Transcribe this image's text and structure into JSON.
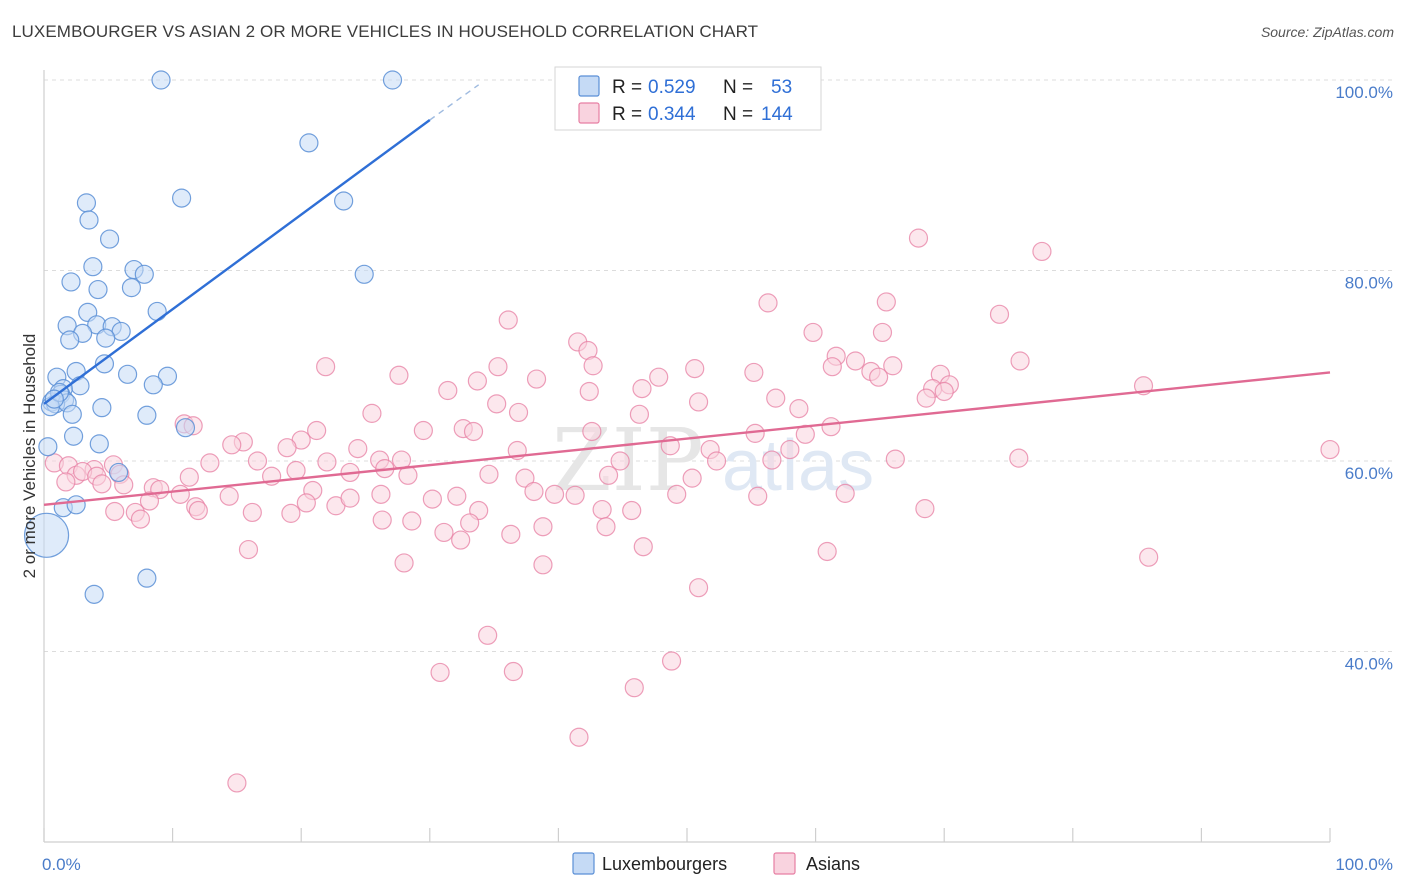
{
  "header": {
    "title": "LUXEMBOURGER VS ASIAN 2 OR MORE VEHICLES IN HOUSEHOLD CORRELATION CHART",
    "source": "Source: ZipAtlas.com"
  },
  "watermark": {
    "zip": "ZIP",
    "atlas": "atlas"
  },
  "legend": {
    "rows": [
      {
        "r_label": "R = ",
        "r_value": "0.529",
        "n_label": "N = ",
        "n_value": "53",
        "color": "#9fc2ee"
      },
      {
        "r_label": "R = ",
        "r_value": "0.344",
        "n_label": "N = ",
        "n_value": "144",
        "color": "#f5b3c8"
      }
    ]
  },
  "bottom_legend": [
    {
      "label": "Luxembourgers",
      "color": "#9fc2ee"
    },
    {
      "label": "Asians",
      "color": "#f5b3c8"
    }
  ],
  "chart_data": {
    "type": "scatter",
    "ylabel": "2 or more Vehicles in Household",
    "xlim": [
      0,
      100
    ],
    "ylim": [
      20,
      100
    ],
    "x_tick_labels": [
      "0.0%",
      "100.0%"
    ],
    "y_ticks": [
      40,
      60,
      80,
      100
    ],
    "y_tick_labels": [
      "40.0%",
      "60.0%",
      "80.0%",
      "100.0%"
    ],
    "grid": true,
    "legend_position": "top-center",
    "colors": {
      "luxembourgers": "#5b8fd6",
      "luxembourgers_fill": "#c5daf5",
      "luxembourgers_line": "#2f6fd6",
      "asians": "#e77fa3",
      "asians_fill": "#f9d3df",
      "asians_line": "#e06a93"
    },
    "series": [
      {
        "name": "Luxembourgers",
        "r": 0.529,
        "n": 53,
        "trend": {
          "x": [
            0,
            30
          ],
          "y": [
            66.0,
            95.8
          ],
          "dashed_to": [
            33.8,
            99.5
          ]
        },
        "points": [
          [
            9.1,
            100
          ],
          [
            27.1,
            100
          ],
          [
            20.6,
            93.4
          ],
          [
            10.7,
            87.6
          ],
          [
            23.3,
            87.3
          ],
          [
            3.3,
            87.1
          ],
          [
            3.5,
            85.3
          ],
          [
            5.1,
            83.3
          ],
          [
            3.8,
            80.4
          ],
          [
            7.0,
            80.1
          ],
          [
            7.8,
            79.6
          ],
          [
            24.9,
            79.6
          ],
          [
            2.1,
            78.8
          ],
          [
            4.2,
            78.0
          ],
          [
            6.8,
            78.2
          ],
          [
            3.4,
            75.6
          ],
          [
            8.8,
            75.7
          ],
          [
            1.8,
            74.2
          ],
          [
            4.1,
            74.3
          ],
          [
            5.3,
            74.1
          ],
          [
            6.0,
            73.6
          ],
          [
            3.0,
            73.4
          ],
          [
            2.0,
            72.7
          ],
          [
            4.8,
            72.9
          ],
          [
            4.7,
            70.2
          ],
          [
            1.0,
            68.8
          ],
          [
            2.5,
            69.4
          ],
          [
            6.5,
            69.1
          ],
          [
            9.6,
            68.9
          ],
          [
            2.8,
            67.9
          ],
          [
            8.5,
            68.0
          ],
          [
            1.5,
            67.6
          ],
          [
            1.3,
            67.0
          ],
          [
            1.6,
            66.4
          ],
          [
            0.6,
            66.2
          ],
          [
            0.9,
            66.0
          ],
          [
            1.8,
            66.1
          ],
          [
            0.5,
            65.7
          ],
          [
            4.5,
            65.6
          ],
          [
            2.2,
            64.9
          ],
          [
            8.0,
            64.8
          ],
          [
            11.0,
            63.5
          ],
          [
            2.3,
            62.6
          ],
          [
            4.3,
            61.8
          ],
          [
            0.3,
            61.5
          ],
          [
            5.8,
            58.8
          ],
          [
            1.5,
            55.1
          ],
          [
            2.5,
            55.4
          ],
          [
            0.2,
            52.2
          ],
          [
            8.0,
            47.7
          ],
          [
            3.9,
            46.0
          ],
          [
            1.2,
            67.2
          ],
          [
            0.8,
            66.5
          ]
        ],
        "large_point": [
          0.2,
          52.2
        ]
      },
      {
        "name": "Asians",
        "r": 0.344,
        "n": 144,
        "trend": {
          "x": [
            0,
            100
          ],
          "y": [
            55.4,
            69.3
          ]
        },
        "points": [
          [
            68.0,
            83.4
          ],
          [
            77.6,
            82.0
          ],
          [
            56.3,
            76.6
          ],
          [
            65.5,
            76.7
          ],
          [
            74.3,
            75.4
          ],
          [
            36.1,
            74.8
          ],
          [
            59.8,
            73.5
          ],
          [
            65.2,
            73.5
          ],
          [
            41.5,
            72.5
          ],
          [
            42.3,
            71.6
          ],
          [
            61.6,
            71.0
          ],
          [
            63.1,
            70.5
          ],
          [
            75.9,
            70.5
          ],
          [
            21.9,
            69.9
          ],
          [
            35.3,
            69.9
          ],
          [
            42.7,
            70.0
          ],
          [
            50.6,
            69.7
          ],
          [
            55.2,
            69.3
          ],
          [
            61.3,
            69.9
          ],
          [
            64.3,
            69.4
          ],
          [
            64.9,
            68.8
          ],
          [
            66.0,
            70.0
          ],
          [
            69.7,
            69.1
          ],
          [
            27.6,
            69.0
          ],
          [
            33.7,
            68.4
          ],
          [
            38.3,
            68.6
          ],
          [
            47.8,
            68.8
          ],
          [
            46.5,
            67.6
          ],
          [
            70.4,
            68.0
          ],
          [
            69.1,
            67.6
          ],
          [
            85.5,
            67.9
          ],
          [
            31.4,
            67.4
          ],
          [
            42.4,
            67.3
          ],
          [
            56.9,
            66.6
          ],
          [
            70.0,
            67.3
          ],
          [
            68.6,
            66.6
          ],
          [
            35.2,
            66.0
          ],
          [
            50.9,
            66.2
          ],
          [
            58.7,
            65.5
          ],
          [
            25.5,
            65.0
          ],
          [
            36.9,
            65.1
          ],
          [
            46.3,
            64.9
          ],
          [
            10.9,
            63.9
          ],
          [
            11.6,
            63.7
          ],
          [
            61.2,
            63.6
          ],
          [
            21.2,
            63.2
          ],
          [
            29.5,
            63.2
          ],
          [
            32.6,
            63.4
          ],
          [
            33.4,
            63.1
          ],
          [
            42.6,
            63.1
          ],
          [
            55.3,
            62.9
          ],
          [
            59.2,
            62.8
          ],
          [
            15.5,
            62.0
          ],
          [
            20.0,
            62.2
          ],
          [
            14.6,
            61.7
          ],
          [
            18.9,
            61.4
          ],
          [
            24.4,
            61.3
          ],
          [
            36.8,
            61.1
          ],
          [
            48.7,
            61.6
          ],
          [
            51.8,
            61.2
          ],
          [
            58.0,
            61.2
          ],
          [
            66.2,
            60.2
          ],
          [
            75.8,
            60.3
          ],
          [
            100.0,
            61.2
          ],
          [
            26.1,
            60.1
          ],
          [
            16.6,
            60.0
          ],
          [
            22.0,
            59.9
          ],
          [
            27.8,
            60.1
          ],
          [
            44.8,
            60.0
          ],
          [
            52.3,
            60.0
          ],
          [
            56.6,
            60.1
          ],
          [
            0.8,
            59.8
          ],
          [
            1.9,
            59.5
          ],
          [
            3.9,
            59.1
          ],
          [
            5.4,
            59.6
          ],
          [
            12.9,
            59.8
          ],
          [
            19.6,
            59.0
          ],
          [
            23.8,
            58.8
          ],
          [
            26.5,
            59.2
          ],
          [
            28.3,
            58.5
          ],
          [
            2.5,
            58.5
          ],
          [
            3.0,
            58.9
          ],
          [
            4.1,
            58.4
          ],
          [
            5.9,
            58.6
          ],
          [
            11.3,
            58.3
          ],
          [
            17.7,
            58.4
          ],
          [
            34.6,
            58.6
          ],
          [
            37.4,
            58.2
          ],
          [
            43.9,
            58.5
          ],
          [
            50.4,
            58.2
          ],
          [
            1.7,
            57.8
          ],
          [
            4.5,
            57.6
          ],
          [
            6.2,
            57.5
          ],
          [
            8.5,
            57.2
          ],
          [
            9.0,
            57.0
          ],
          [
            20.9,
            56.9
          ],
          [
            26.2,
            56.5
          ],
          [
            38.1,
            56.8
          ],
          [
            39.7,
            56.5
          ],
          [
            41.3,
            56.4
          ],
          [
            49.2,
            56.5
          ],
          [
            55.5,
            56.3
          ],
          [
            62.3,
            56.6
          ],
          [
            10.6,
            56.5
          ],
          [
            14.4,
            56.3
          ],
          [
            20.4,
            55.6
          ],
          [
            22.7,
            55.3
          ],
          [
            23.8,
            56.1
          ],
          [
            30.2,
            56.0
          ],
          [
            32.1,
            56.3
          ],
          [
            8.2,
            55.8
          ],
          [
            11.8,
            55.2
          ],
          [
            5.5,
            54.7
          ],
          [
            7.1,
            54.6
          ],
          [
            12.0,
            54.8
          ],
          [
            16.2,
            54.6
          ],
          [
            19.2,
            54.5
          ],
          [
            33.8,
            54.8
          ],
          [
            43.4,
            54.9
          ],
          [
            45.7,
            54.8
          ],
          [
            68.5,
            55.0
          ],
          [
            7.5,
            53.9
          ],
          [
            26.3,
            53.8
          ],
          [
            28.6,
            53.7
          ],
          [
            33.1,
            53.5
          ],
          [
            38.8,
            53.1
          ],
          [
            43.7,
            53.1
          ],
          [
            31.1,
            52.5
          ],
          [
            36.3,
            52.3
          ],
          [
            32.4,
            51.7
          ],
          [
            15.9,
            50.7
          ],
          [
            46.6,
            51.0
          ],
          [
            60.9,
            50.5
          ],
          [
            85.9,
            49.9
          ],
          [
            28.0,
            49.3
          ],
          [
            38.8,
            49.1
          ],
          [
            50.9,
            46.7
          ],
          [
            34.5,
            41.7
          ],
          [
            48.8,
            39.0
          ],
          [
            30.8,
            37.8
          ],
          [
            36.5,
            37.9
          ],
          [
            45.9,
            36.2
          ],
          [
            41.6,
            31.0
          ],
          [
            15.0,
            26.2
          ]
        ]
      }
    ]
  }
}
